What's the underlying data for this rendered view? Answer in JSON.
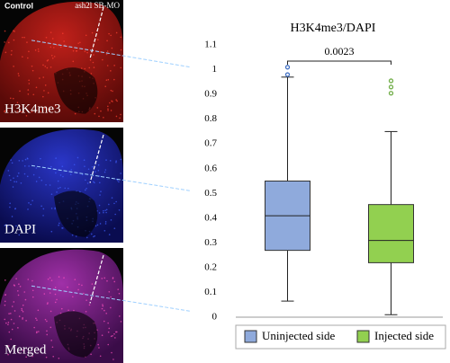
{
  "panels": [
    {
      "label": "H3K4me3",
      "left_note": "Control",
      "right_note": "ash2l SB-MO"
    },
    {
      "label": "DAPI"
    },
    {
      "label": "Merged"
    }
  ],
  "chart_data": {
    "type": "box",
    "title": "H3K4me3/DAPI",
    "ylim": [
      0,
      1.1
    ],
    "yticks": [
      0,
      0.1,
      0.2,
      0.3,
      0.4,
      0.5,
      0.6,
      0.7,
      0.8,
      0.9,
      1,
      1.1
    ],
    "annotation": "0.0023",
    "series": [
      {
        "name": "Uninjected side",
        "color": "#8faadc",
        "min": 0.065,
        "q1": 0.27,
        "median": 0.41,
        "q3": 0.55,
        "max": 0.97,
        "outliers": [
          1.01,
          0.98
        ],
        "outlier_color": "#4472c4"
      },
      {
        "name": "Injected side",
        "color": "#92d050",
        "min": 0.01,
        "q1": 0.22,
        "median": 0.31,
        "q3": 0.455,
        "max": 0.75,
        "outliers": [
          0.955,
          0.93,
          0.905
        ],
        "outlier_color": "#70ad47"
      }
    ]
  }
}
